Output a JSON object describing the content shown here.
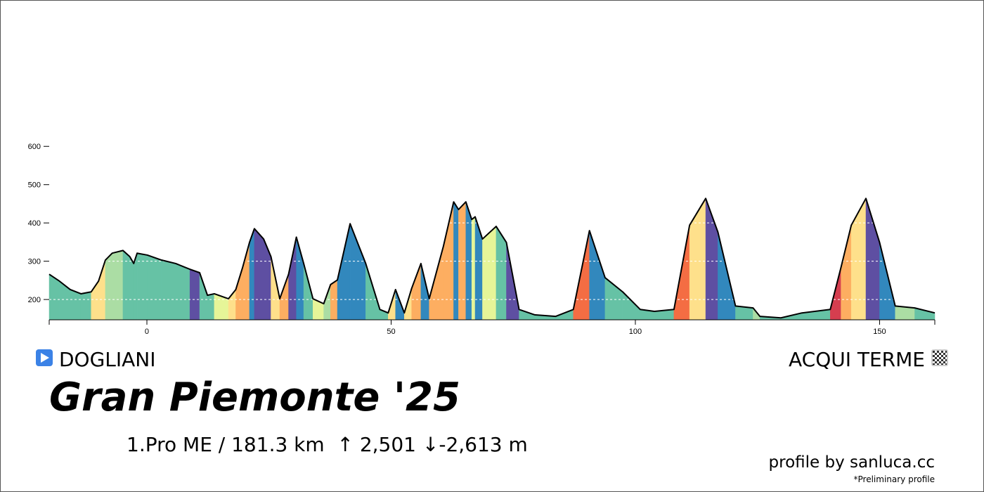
{
  "chart_data": {
    "type": "area",
    "x": [
      -20,
      -17.9,
      -15.7,
      -13.5,
      -11.4,
      -9.9,
      -8.5,
      -7.1,
      -4.9,
      -3.5,
      -2.7,
      -2.0,
      0.1,
      3.0,
      5.9,
      8.8,
      10.8,
      12.4,
      13.8,
      16.7,
      18.2,
      19.6,
      21.0,
      22.0,
      23.9,
      25.4,
      27.2,
      29.0,
      30.6,
      32.1,
      34.0,
      36.2,
      37.6,
      39.0,
      41.6,
      44.8,
      47.7,
      49.4,
      50.9,
      52.7,
      54.2,
      56.1,
      57.8,
      60.7,
      62.8,
      63.8,
      65.3,
      66.5,
      67.2,
      68.7,
      71.5,
      73.6,
      76.2,
      79.4,
      83.7,
      87.3,
      90.6,
      93.8,
      97.4,
      101.0,
      103.9,
      107.9,
      111.1,
      114.4,
      116.9,
      120.5,
      124.1,
      125.5,
      129.8,
      134.1,
      139.9,
      142.1,
      144.2,
      147.2,
      150.0,
      153.2,
      157.2,
      161.3
    ],
    "values": [
      266,
      248,
      226,
      215,
      220,
      248,
      303,
      321,
      328,
      312,
      294,
      321,
      316,
      303,
      294,
      279,
      270,
      211,
      215,
      202,
      226,
      284,
      349,
      385,
      358,
      312,
      202,
      266,
      363,
      294,
      202,
      189,
      239,
      251,
      398,
      294,
      174,
      165,
      226,
      165,
      229,
      294,
      202,
      339,
      455,
      435,
      455,
      409,
      416,
      358,
      391,
      349,
      174,
      160,
      156,
      174,
      380,
      257,
      220,
      174,
      169,
      174,
      394,
      464,
      376,
      183,
      178,
      156,
      152,
      165,
      174,
      284,
      394,
      464,
      349,
      183,
      178,
      165
    ],
    "segment_colors": [
      "#66c2a5",
      "#66c2a5",
      "#66c2a5",
      "#66c2a5",
      "#fee08b",
      "#fee08b",
      "#abdda4",
      "#abdda4",
      "#66c2a5",
      "#66c2a5",
      "#66c2a5",
      "#66c2a5",
      "#66c2a5",
      "#66c2a5",
      "#66c2a5",
      "#5e4fa2",
      "#66c2a5",
      "#66c2a5",
      "#e6f598",
      "#fee08b",
      "#fdae61",
      "#fdae61",
      "#3288bd",
      "#5e4fa2",
      "#5e4fa2",
      "#fee08b",
      "#fdae61",
      "#5e4fa2",
      "#3288bd",
      "#66c2a5",
      "#e6f598",
      "#abdda4",
      "#fdae61",
      "#3288bd",
      "#3288bd",
      "#66c2a5",
      "#66c2a5",
      "#fee08b",
      "#3288bd",
      "#fee08b",
      "#fdae61",
      "#3288bd",
      "#fdae61",
      "#fdae61",
      "#3288bd",
      "#fdae61",
      "#3288bd",
      "#e6f598",
      "#3288bd",
      "#e6f598",
      "#66c2a5",
      "#5e4fa2",
      "#66c2a5",
      "#66c2a5",
      "#66c2a5",
      "#f46d43",
      "#3288bd",
      "#66c2a5",
      "#66c2a5",
      "#66c2a5",
      "#66c2a5",
      "#f46d43",
      "#fee08b",
      "#5e4fa2",
      "#3288bd",
      "#66c2a5",
      "#abdda4",
      "#66c2a5",
      "#66c2a5",
      "#66c2a5",
      "#d53e4f",
      "#fdae61",
      "#fee08b",
      "#5e4fa2",
      "#3288bd",
      "#abdda4",
      "#66c2a5"
    ],
    "line_color": "#000000",
    "xlim": [
      -20,
      161.3
    ],
    "ylim": [
      147,
      650
    ],
    "xticks": [
      0,
      50,
      100,
      150
    ],
    "yticks": [
      200,
      300,
      400,
      500,
      600
    ],
    "grid": true,
    "start": "DOGLIANI",
    "finish": "ACQUI TERME",
    "title": "Gran Piemonte '25",
    "subtitle": "1.Pro ME / 181.3 km  ↑ 2,501 ↓-2,613 m",
    "credit": "profile by sanluca.cc",
    "note": "*Preliminary profile"
  }
}
